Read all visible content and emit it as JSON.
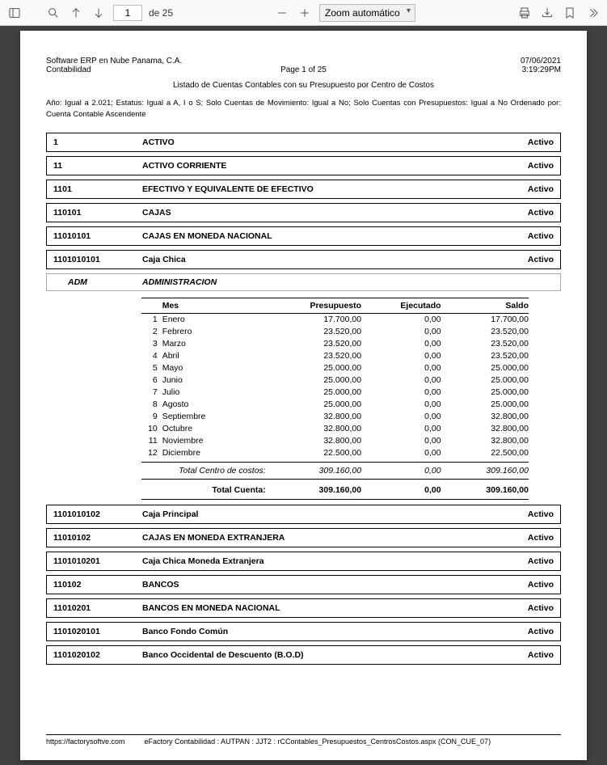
{
  "toolbar": {
    "page_value": "1",
    "page_of": "de 25",
    "zoom": "Zoom automático"
  },
  "header": {
    "company": "Software ERP en Nube Panama, C.A.",
    "module": "Contabilidad",
    "page": "Page 1 of 25",
    "date": "07/06/2021",
    "time": "3:19:29PM",
    "title": "Listado de Cuentas Contables con su Presupuesto por Centro de Costos",
    "filter": "Año: Igual a 2.021; Estatus: Igual a A, I o S; Solo Cuentas de Movimiento: Igual a No; Solo Cuentas con Presupuestos: Igual a No Ordenado por: Cuenta Contable Ascendente"
  },
  "status_label": "Activo",
  "accounts_top": [
    {
      "code": "1",
      "name": "ACTIVO"
    },
    {
      "code": "11",
      "name": "ACTIVO CORRIENTE"
    },
    {
      "code": "1101",
      "name": "EFECTIVO Y EQUIVALENTE DE EFECTIVO"
    },
    {
      "code": "110101",
      "name": "CAJAS"
    },
    {
      "code": "11010101",
      "name": "CAJAS EN MONEDA NACIONAL"
    },
    {
      "code": "1101010101",
      "name": "Caja Chica"
    }
  ],
  "cost_center": {
    "code": "ADM",
    "name": "ADMINISTRACION"
  },
  "columns": {
    "mes": "Mes",
    "presupuesto": "Presupuesto",
    "ejecutado": "Ejecutado",
    "saldo": "Saldo"
  },
  "rows": [
    {
      "n": "1",
      "m": "Enero",
      "p": "17.700,00",
      "e": "0,00",
      "s": "17.700,00"
    },
    {
      "n": "2",
      "m": "Febrero",
      "p": "23.520,00",
      "e": "0,00",
      "s": "23.520,00"
    },
    {
      "n": "3",
      "m": "Marzo",
      "p": "23.520,00",
      "e": "0,00",
      "s": "23.520,00"
    },
    {
      "n": "4",
      "m": "Abril",
      "p": "23.520,00",
      "e": "0,00",
      "s": "23.520,00"
    },
    {
      "n": "5",
      "m": "Mayo",
      "p": "25.000,00",
      "e": "0,00",
      "s": "25.000,00"
    },
    {
      "n": "6",
      "m": "Junio",
      "p": "25.000,00",
      "e": "0,00",
      "s": "25.000,00"
    },
    {
      "n": "7",
      "m": "Julio",
      "p": "25.000,00",
      "e": "0,00",
      "s": "25.000,00"
    },
    {
      "n": "8",
      "m": "Agosto",
      "p": "25.000,00",
      "e": "0,00",
      "s": "25.000,00"
    },
    {
      "n": "9",
      "m": "Septiembre",
      "p": "32.800,00",
      "e": "0,00",
      "s": "32.800,00"
    },
    {
      "n": "10",
      "m": "Octubre",
      "p": "32.800,00",
      "e": "0,00",
      "s": "32.800,00"
    },
    {
      "n": "11",
      "m": "Noviembre",
      "p": "32.800,00",
      "e": "0,00",
      "s": "32.800,00"
    },
    {
      "n": "12",
      "m": "Diciembre",
      "p": "22.500,00",
      "e": "0,00",
      "s": "22.500,00"
    }
  ],
  "totals": {
    "cc_label": "Total Centro de costos:",
    "cc_p": "309.160,00",
    "cc_e": "0,00",
    "cc_s": "309.160,00",
    "ac_label": "Total Cuenta:",
    "ac_p": "309.160,00",
    "ac_e": "0,00",
    "ac_s": "309.160,00"
  },
  "accounts_bottom": [
    {
      "code": "1101010102",
      "name": "Caja Principal"
    },
    {
      "code": "11010102",
      "name": "CAJAS EN MONEDA EXTRANJERA"
    },
    {
      "code": "1101010201",
      "name": "Caja Chica Moneda Extranjera"
    },
    {
      "code": "110102",
      "name": "BANCOS"
    },
    {
      "code": "11010201",
      "name": "BANCOS EN MONEDA NACIONAL"
    },
    {
      "code": "1101020101",
      "name": "Banco Fondo Común"
    },
    {
      "code": "1101020102",
      "name": "Banco Occidental de Descuento (B.O.D)"
    }
  ],
  "footer": {
    "url": "https://factorysoftve.com",
    "info": "eFactory Contabilidad : AUTPAN : JJT2 : rCContables_Presupuestos_CentrosCostos.aspx (CON_CUE_07)"
  }
}
